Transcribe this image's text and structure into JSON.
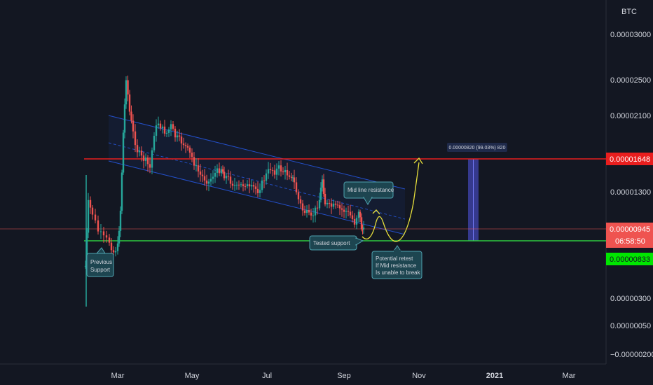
{
  "chart_data": {
    "type": "candlestick",
    "currency": "BTC",
    "y_ticks": [
      "0.00003000",
      "0.00002500",
      "0.00002100",
      "0.00001300",
      "0.00000300",
      "0.00000050",
      "−0.00000200"
    ],
    "x_ticks": [
      "Mar",
      "May",
      "Jul",
      "Sep",
      "Nov",
      "2021",
      "Mar"
    ],
    "price_tags": {
      "resistance": "0.00001648",
      "last": "0.00000945",
      "countdown": "06:58:50",
      "support": "0.00000833"
    },
    "range_label": "0.00000820 (99.03%) 820",
    "annotations": {
      "previous_support": [
        "Previous",
        "Support"
      ],
      "mid_line_resistance": "Mid line resistance",
      "tested_support": "Tested support",
      "potential_retest": [
        "Potential retest",
        "If Mid resistance",
        "Is unable to break"
      ]
    },
    "colors": {
      "background": "#131722",
      "up": "#26a69a",
      "down": "#ef5350",
      "resistance_line": "#e91e1e",
      "support_line": "#2ecc40",
      "channel": "#2962ff",
      "projection": "#e8e03c",
      "note_bg": "#1d4550",
      "note_border": "#4fa3b0"
    }
  }
}
